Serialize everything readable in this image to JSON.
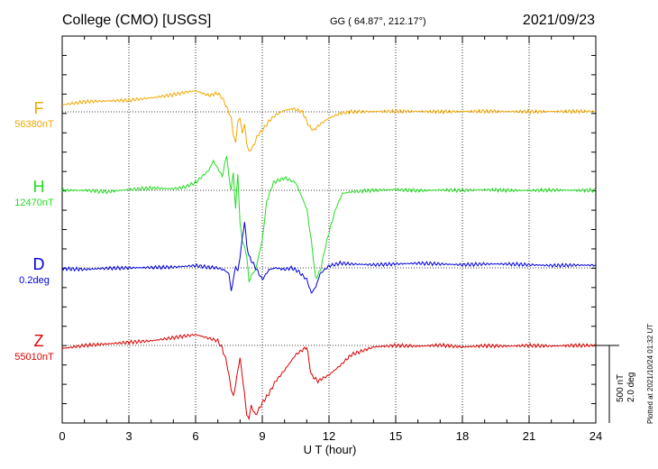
{
  "header": {
    "station": "College (CMO)  [USGS]",
    "coords": "GG ( 64.87°, 212.17°)",
    "date": "2021/09/23"
  },
  "footer": {
    "plotted": "Plotted at 2021/10/24 01:32 UT"
  },
  "scale": {
    "nt": "500 nT",
    "deg": "2.0 deg"
  },
  "colors": {
    "F": "#f0a800",
    "H": "#22dd22",
    "D": "#0000dd",
    "Z": "#dd0000"
  },
  "chart_data": {
    "type": "line",
    "xlabel": "U T (hour)",
    "xlim": [
      0,
      24
    ],
    "xticks": [
      "0",
      "3",
      "6",
      "9",
      "12",
      "15",
      "18",
      "21",
      "24"
    ],
    "grid": true,
    "scale_per_division_nT": 500,
    "series": [
      {
        "name": "F",
        "baseline_label": "56380nT",
        "baseline": 56380,
        "unit": "nT",
        "x": [
          0,
          1,
          2,
          3,
          4,
          5,
          5.5,
          6,
          6.3,
          6.6,
          7,
          7.2,
          7.4,
          7.6,
          7.7,
          7.8,
          7.9,
          8,
          8.1,
          8.2,
          8.3,
          8.4,
          8.6,
          8.8,
          9,
          9.3,
          9.6,
          10,
          10.4,
          10.8,
          11.1,
          11.3,
          11.6,
          12,
          12.5,
          13,
          14,
          15,
          16,
          17,
          18,
          19,
          20,
          21,
          22,
          23,
          24
        ],
        "values": [
          56425,
          56445,
          56450,
          56455,
          56470,
          56490,
          56505,
          56515,
          56500,
          56485,
          56500,
          56470,
          56410,
          56340,
          56230,
          56180,
          56320,
          56340,
          56240,
          56300,
          56180,
          56120,
          56160,
          56230,
          56260,
          56320,
          56360,
          56390,
          56400,
          56380,
          56290,
          56260,
          56300,
          56340,
          56370,
          56380,
          56382,
          56384,
          56383,
          56381,
          56382,
          56384,
          56382,
          56381,
          56382,
          56383,
          56383
        ]
      },
      {
        "name": "H",
        "baseline_label": "12470nT",
        "baseline": 12470,
        "unit": "nT",
        "x": [
          0,
          1,
          2,
          3,
          4,
          5,
          5.5,
          6,
          6.3,
          6.6,
          6.8,
          7,
          7.2,
          7.4,
          7.5,
          7.6,
          7.7,
          7.8,
          7.9,
          8,
          8.1,
          8.2,
          8.3,
          8.4,
          8.5,
          8.7,
          9,
          9.2,
          9.5,
          10,
          10.5,
          10.8,
          11,
          11.2,
          11.4,
          11.6,
          11.8,
          12,
          12.3,
          12.6,
          13,
          14,
          15,
          16,
          17,
          18,
          19,
          20,
          21,
          22,
          23,
          24
        ],
        "values": [
          12470,
          12470,
          12460,
          12475,
          12485,
          12480,
          12490,
          12520,
          12560,
          12600,
          12660,
          12610,
          12560,
          12700,
          12550,
          12480,
          12580,
          12350,
          12580,
          12250,
          12150,
          12100,
          12050,
          11880,
          11920,
          11960,
          12150,
          12400,
          12520,
          12550,
          12520,
          12420,
          12350,
          12150,
          11900,
          11950,
          12080,
          12200,
          12350,
          12450,
          12460,
          12470,
          12475,
          12468,
          12472,
          12470,
          12474,
          12470,
          12469,
          12472,
          12470,
          12470
        ]
      },
      {
        "name": "D",
        "baseline_label": "0.2deg",
        "baseline": 0.2,
        "unit": "deg",
        "x": [
          0,
          1,
          2,
          3,
          4,
          5,
          5.5,
          6,
          6.5,
          7,
          7.3,
          7.5,
          7.6,
          7.7,
          7.8,
          7.9,
          8,
          8.1,
          8.2,
          8.3,
          8.4,
          8.5,
          8.7,
          9,
          9.3,
          9.6,
          10,
          10.3,
          10.6,
          11,
          11.2,
          11.4,
          11.6,
          12,
          12.5,
          13,
          14,
          15,
          16,
          17,
          18,
          19,
          20,
          21,
          22,
          23,
          24
        ],
        "values": [
          0.18,
          0.16,
          0.19,
          0.2,
          0.21,
          0.22,
          0.24,
          0.26,
          0.22,
          0.2,
          0.14,
          0.05,
          -0.4,
          -0.1,
          0.25,
          0.1,
          0.5,
          0.95,
          1.4,
          0.8,
          0.5,
          0.4,
          0.2,
          -0.1,
          0.15,
          0.2,
          0.16,
          0.2,
          0.12,
          -0.1,
          -0.45,
          -0.3,
          0.05,
          0.25,
          0.32,
          0.3,
          0.28,
          0.3,
          0.32,
          0.3,
          0.28,
          0.3,
          0.3,
          0.28,
          0.26,
          0.27,
          0.27
        ]
      },
      {
        "name": "Z",
        "baseline_label": "55010nT",
        "baseline": 55010,
        "unit": "nT",
        "x": [
          0,
          1,
          2,
          3,
          4,
          5,
          5.5,
          6,
          6.5,
          7,
          7.2,
          7.4,
          7.6,
          7.7,
          7.8,
          7.9,
          8,
          8.1,
          8.2,
          8.3,
          8.4,
          8.5,
          8.7,
          9,
          9.3,
          9.6,
          10,
          10.5,
          11,
          11.2,
          11.5,
          12,
          12.5,
          13,
          14,
          15,
          16,
          17,
          18,
          19,
          20,
          21,
          22,
          23,
          24
        ],
        "values": [
          54990,
          55010,
          55020,
          55030,
          55040,
          55060,
          55070,
          55080,
          55060,
          55040,
          54990,
          54900,
          54730,
          54680,
          54760,
          54850,
          54930,
          54810,
          54700,
          54560,
          54540,
          54620,
          54560,
          54640,
          54700,
          54780,
          54850,
          54950,
          55000,
          54820,
          54780,
          54820,
          54880,
          54950,
          55000,
          55010,
          55005,
          55012,
          55000,
          55008,
          55005,
          55010,
          55006,
          55010,
          55010
        ]
      }
    ]
  }
}
